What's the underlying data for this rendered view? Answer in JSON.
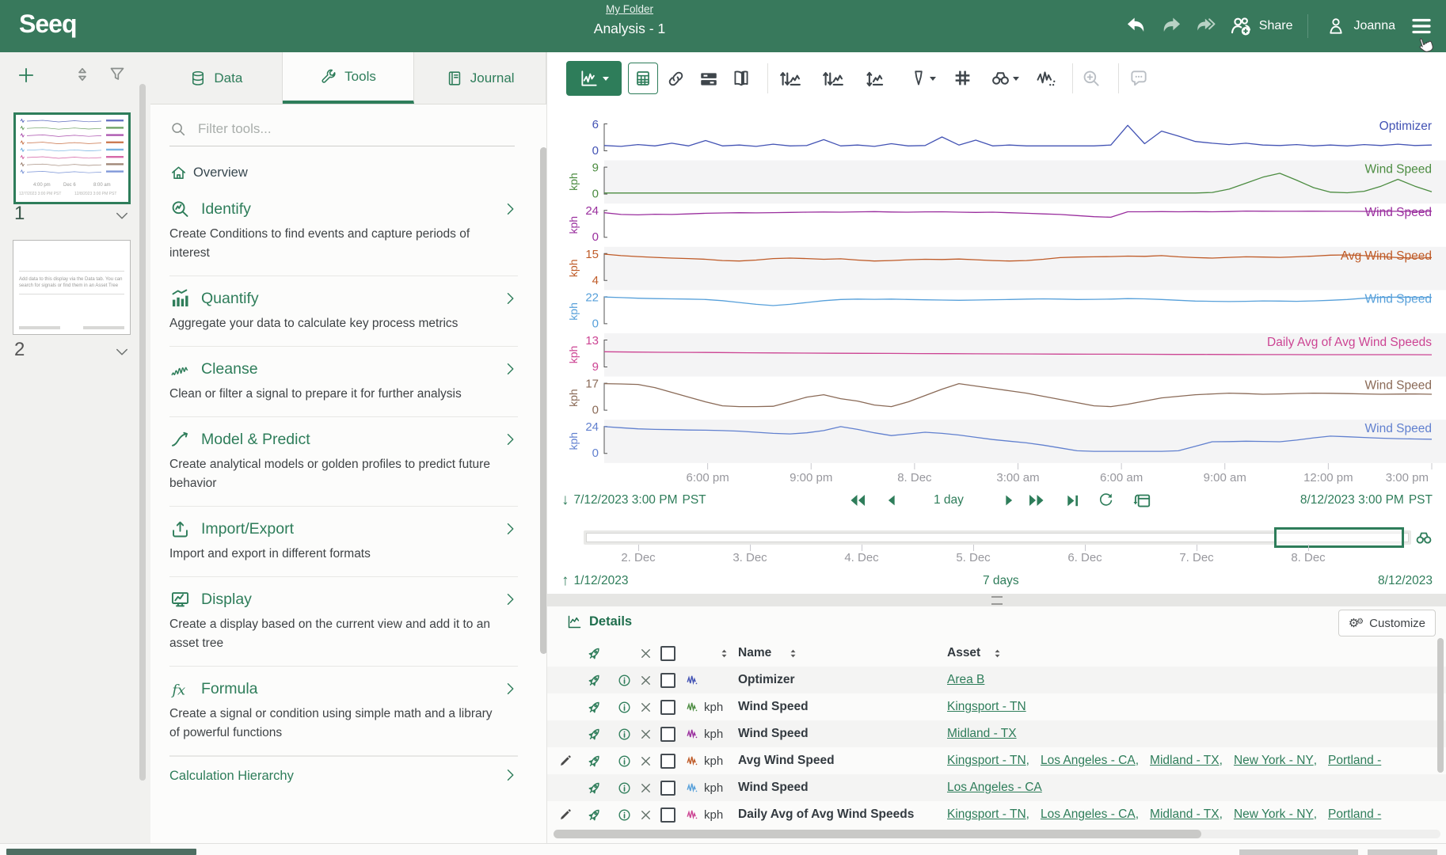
{
  "header": {
    "logo": "Seeq",
    "breadcrumb": "My Folder",
    "title": "Analysis - 1",
    "share_label": "Share",
    "user_name": "Joanna"
  },
  "pages": [
    {
      "number": "1",
      "selected": true,
      "thumb_ticks": [
        "4:00 pm",
        "Dec 6",
        "8:00 am"
      ],
      "thumb_dates": [
        "12/7/2023 3:00 PM PST",
        "12/8/2023 3:00 PM PST"
      ]
    },
    {
      "number": "2",
      "selected": false,
      "placeholder_text": "Add data to this display via the Data tab. You can search for signals or find them in an Asset Tree"
    }
  ],
  "tabs": [
    {
      "label": "Data"
    },
    {
      "label": "Tools"
    },
    {
      "label": "Journal"
    }
  ],
  "tools_panel": {
    "filter_placeholder": "Filter tools...",
    "overview_label": "Overview",
    "items": [
      {
        "icon": "identify",
        "name": "Identify",
        "desc": "Create Conditions to find events and capture periods of interest"
      },
      {
        "icon": "quantify",
        "name": "Quantify",
        "desc": "Aggregate your data to calculate key process metrics"
      },
      {
        "icon": "cleanse",
        "name": "Cleanse",
        "desc": "Clean or filter a signal to prepare it for further analysis"
      },
      {
        "icon": "model",
        "name": "Model & Predict",
        "desc": "Create analytical models or golden profiles to predict future behavior"
      },
      {
        "icon": "importexport",
        "name": "Import/Export",
        "desc": "Import and export in different formats"
      },
      {
        "icon": "display",
        "name": "Display",
        "desc": "Create a display based on the current view and add it to an asset tree"
      },
      {
        "icon": "formula",
        "name": "Formula",
        "desc": "Create a signal or condition using simple math and a library of powerful functions"
      }
    ],
    "footer_item": "Calculation Hierarchy"
  },
  "trend": {
    "start_label": "7/12/2023 3:00 PM",
    "start_tz": "PST",
    "duration_label": "1 day",
    "end_label": "8/12/2023 3:00 PM",
    "end_tz": "PST"
  },
  "overview_bar": {
    "start": "1/12/2023",
    "duration": "7 days",
    "end": "8/12/2023",
    "ticks": [
      "2. Dec",
      "3. Dec",
      "4. Dec",
      "5. Dec",
      "6. Dec",
      "7. Dec",
      "8. Dec"
    ]
  },
  "chart_data": {
    "type": "line",
    "x_axis": "time",
    "time_ticks": [
      {
        "f": 0.125,
        "label": "6:00 pm"
      },
      {
        "f": 0.25,
        "label": "9:00 pm"
      },
      {
        "f": 0.375,
        "label": "8. Dec"
      },
      {
        "f": 0.5,
        "label": "3:00 am"
      },
      {
        "f": 0.625,
        "label": "6:00 am"
      },
      {
        "f": 0.75,
        "label": "9:00 am"
      },
      {
        "f": 0.875,
        "label": "12:00 pm"
      },
      {
        "f": 1.0,
        "label": "3:00 pm"
      }
    ],
    "lanes": [
      {
        "name": "Optimizer",
        "unit": "",
        "color": "#4353b4",
        "axis": [
          0,
          6
        ],
        "values": [
          1.1,
          0.9,
          1.3,
          1.0,
          1.6,
          1.0,
          2.2,
          1.0,
          1.2,
          0.9,
          1.4,
          1.0,
          1.1,
          2.4,
          1.0,
          1.2,
          0.9,
          1.5,
          1.0,
          1.1,
          3.0,
          1.2,
          2.3,
          1.0,
          1.2,
          1.0,
          1.0,
          1.0,
          1.0,
          1.0,
          1.2,
          5.6,
          1.5,
          4.3,
          3.2,
          2.0,
          1.6,
          1.3,
          1.6,
          1.2,
          1.1,
          1.3,
          1.0,
          1.2,
          1.0,
          1.3,
          1.1,
          1.4,
          1.1,
          1.2
        ]
      },
      {
        "name": "Wind Speed",
        "unit": "kph",
        "color": "#4c8c41",
        "axis": [
          0,
          9
        ],
        "values": [
          0.2,
          0.2,
          0.2,
          0.2,
          0.2,
          0.2,
          0.2,
          0.2,
          0.2,
          0.2,
          0.2,
          0.2,
          0.2,
          0.2,
          0.2,
          0.2,
          0.2,
          0.2,
          0.2,
          0.2,
          0.2,
          0.2,
          0.2,
          0.2,
          0.2,
          0.2,
          0.2,
          0.2,
          0.2,
          0.2,
          0.2,
          0.2,
          0.2,
          0.2,
          0.2,
          0.2,
          0.4,
          1.5,
          3.5,
          5.5,
          6.8,
          4.5,
          2.0,
          0.5,
          0.3,
          0.8,
          2.5,
          4.8,
          2.5,
          0.6
        ]
      },
      {
        "name": "Wind Speed",
        "unit": "kph",
        "color": "#9a2f9e",
        "axis": [
          0,
          24
        ],
        "values": [
          21.5,
          20.0,
          19.6,
          20.2,
          20.0,
          20.5,
          21.0,
          21.3,
          21.5,
          21.4,
          21.6,
          21.8,
          22.0,
          22.2,
          22.0,
          22.3,
          22.5,
          22.2,
          22.0,
          22.3,
          22.4,
          22.0,
          21.8,
          22.0,
          21.5,
          21.0,
          20.5,
          20.0,
          19.0,
          18.0,
          17.5,
          22.4,
          22.4,
          22.5,
          22.4,
          22.5,
          22.4,
          22.6,
          23.0,
          22.9,
          22.8,
          22.8,
          22.9,
          22.8,
          22.8,
          22.7,
          22.8,
          22.8,
          22.7,
          22.8
        ]
      },
      {
        "name": "Avg Wind Speed",
        "unit": "kph",
        "color": "#bf5b28",
        "axis": [
          4,
          15
        ],
        "values": [
          14.6,
          14.0,
          13.6,
          13.3,
          13.0,
          12.8,
          12.5,
          12.0,
          11.8,
          12.2,
          12.8,
          13.0,
          12.8,
          12.5,
          12.7,
          12.2,
          11.8,
          12.0,
          12.3,
          12.5,
          12.4,
          12.6,
          12.3,
          12.0,
          11.8,
          12.0,
          12.5,
          13.2,
          13.4,
          13.5,
          13.6,
          13.8,
          13.7,
          14.0,
          13.5,
          13.2,
          13.0,
          13.3,
          13.5,
          13.4,
          13.3,
          13.5,
          13.8,
          14.2,
          14.3,
          14.0,
          13.6,
          13.2,
          13.0,
          13.2
        ]
      },
      {
        "name": "Wind Speed",
        "unit": "kph",
        "color": "#57a0da",
        "axis": [
          0,
          22
        ],
        "values": [
          21.5,
          21.0,
          20.5,
          20.2,
          20.0,
          19.8,
          19.5,
          18.5,
          17.0,
          15.5,
          14.5,
          15.5,
          17.0,
          18.5,
          19.5,
          19.8,
          19.6,
          19.8,
          19.5,
          19.2,
          19.0,
          18.8,
          19.0,
          19.3,
          19.5,
          19.8,
          20.0,
          19.8,
          19.5,
          19.6,
          19.8,
          20.2,
          20.0,
          19.5,
          18.8,
          18.2,
          18.0,
          17.8,
          18.0,
          18.3,
          18.2,
          18.0,
          18.3,
          18.8,
          19.5,
          20.5,
          21.2,
          21.4,
          21.3,
          21.2
        ]
      },
      {
        "name": "Daily Avg of Avg Wind Speeds",
        "unit": "kph",
        "color": "#cc4493",
        "axis": [
          9,
          13
        ],
        "values": [
          11.2,
          11.15,
          11.12,
          11.1,
          11.08,
          11.05,
          11.02,
          11.0,
          10.98,
          10.96,
          10.95,
          10.93,
          10.92,
          10.9,
          10.88,
          10.87,
          10.85,
          10.84,
          10.83,
          10.82,
          10.8,
          10.8,
          10.79,
          10.78,
          10.78,
          10.77,
          10.77,
          10.76,
          10.76,
          10.75
        ]
      },
      {
        "name": "Wind Speed",
        "unit": "kph",
        "color": "#8a6a57",
        "axis": [
          0,
          17
        ],
        "values": [
          16.5,
          16.3,
          16.0,
          14.0,
          11.0,
          8.0,
          5.0,
          2.5,
          2.0,
          2.0,
          2.2,
          5.0,
          8.0,
          9.5,
          7.0,
          5.5,
          3.0,
          2.0,
          5.0,
          9.0,
          13.0,
          16.5,
          15.0,
          13.5,
          12.0,
          10.5,
          8.5,
          6.5,
          4.5,
          2.5,
          2.0,
          3.5,
          5.5,
          7.5,
          8.5,
          9.5,
          10.0,
          10.5,
          10.2,
          9.8,
          10.0,
          10.3,
          10.5,
          10.4,
          10.2,
          10.0,
          9.8,
          9.9,
          10.0,
          9.8
        ]
      },
      {
        "name": "Wind Speed",
        "unit": "kph",
        "color": "#6180cf",
        "axis": [
          0,
          24
        ],
        "values": [
          23.5,
          22.5,
          21.5,
          21.0,
          20.8,
          20.5,
          20.3,
          20.0,
          19.5,
          18.5,
          17.5,
          17.0,
          18.0,
          20.0,
          23.5,
          21.0,
          18.0,
          15.5,
          17.0,
          18.5,
          17.5,
          16.0,
          14.0,
          12.0,
          10.5,
          9.0,
          7.0,
          4.5,
          2.0,
          1.5,
          1.5,
          1.5,
          1.5,
          1.5,
          2.0,
          6.0,
          10.0,
          10.2,
          10.5,
          10.3,
          10.0,
          11.5,
          13.5,
          15.0,
          14.5,
          13.8,
          13.2,
          12.8,
          12.5,
          12.3
        ]
      }
    ]
  },
  "details": {
    "title": "Details",
    "customize_label": "Customize",
    "columns": [
      "Name",
      "Asset"
    ],
    "rows": [
      {
        "editable": false,
        "unit": "",
        "name": "Optimizer",
        "color": "#4353b4",
        "assets": [
          "Area B"
        ],
        "partial": false
      },
      {
        "editable": false,
        "unit": "kph",
        "name": "Wind Speed",
        "color": "#4c8c41",
        "assets": [
          "Kingsport - TN"
        ],
        "partial": false
      },
      {
        "editable": false,
        "unit": "kph",
        "name": "Wind Speed",
        "color": "#9a2f9e",
        "assets": [
          "Midland - TX"
        ],
        "partial": false
      },
      {
        "editable": true,
        "unit": "kph",
        "name": "Avg Wind Speed",
        "color": "#bf5b28",
        "assets": [
          "Kingsport - TN",
          "Los Angeles - CA",
          "Midland - TX",
          "New York - NY",
          "Portland -"
        ],
        "partial": false
      },
      {
        "editable": false,
        "unit": "kph",
        "name": "Wind Speed",
        "color": "#57a0da",
        "assets": [
          "Los Angeles - CA"
        ],
        "partial": false
      },
      {
        "editable": true,
        "unit": "kph",
        "name": "Daily Avg of Avg Wind Speeds",
        "color": "#cc4493",
        "assets": [
          "Kingsport - TN",
          "Los Angeles - CA",
          "Midland - TX",
          "New York - NY",
          "Portland -"
        ],
        "partial": false
      },
      {
        "editable": false,
        "unit": "",
        "name": "",
        "color": "#bf7a45",
        "assets": [],
        "partial": true
      }
    ]
  }
}
